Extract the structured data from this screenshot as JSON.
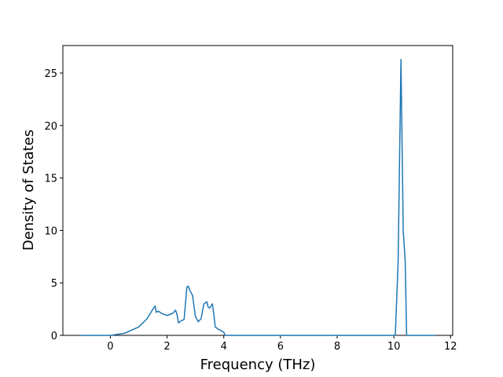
{
  "chart_data": {
    "type": "line",
    "xlabel": "Frequency (THz)",
    "ylabel": "Density of States",
    "x": [
      -1.05,
      0,
      0.5,
      1.0,
      1.3,
      1.5,
      1.58,
      1.62,
      1.7,
      1.8,
      2.0,
      2.2,
      2.3,
      2.35,
      2.4,
      2.5,
      2.6,
      2.7,
      2.75,
      2.8,
      2.9,
      3.0,
      3.1,
      3.2,
      3.3,
      3.4,
      3.45,
      3.5,
      3.6,
      3.65,
      3.7,
      3.8,
      4.0,
      4.05,
      10.05,
      10.15,
      10.25,
      10.33,
      10.4,
      10.45,
      11.45
    ],
    "series": [
      {
        "color": "#1f77b4",
        "values": [
          0,
          0,
          0.2,
          0.8,
          1.6,
          2.5,
          2.8,
          2.2,
          2.3,
          2.1,
          1.9,
          2.1,
          2.4,
          2.0,
          1.2,
          1.4,
          1.5,
          4.6,
          4.7,
          4.3,
          3.8,
          1.8,
          1.3,
          1.6,
          3.0,
          3.2,
          2.7,
          2.6,
          3.0,
          2.0,
          0.8,
          0.6,
          0.3,
          0,
          0,
          7,
          26.3,
          10,
          7,
          0,
          0
        ]
      }
    ],
    "xlim": [
      -1.675,
      12.075
    ],
    "ylim": [
      0,
      27.62
    ],
    "xticks": [
      0,
      2,
      4,
      6,
      8,
      10,
      12
    ],
    "yticks": [
      0,
      5,
      10,
      15,
      20,
      25
    ]
  }
}
